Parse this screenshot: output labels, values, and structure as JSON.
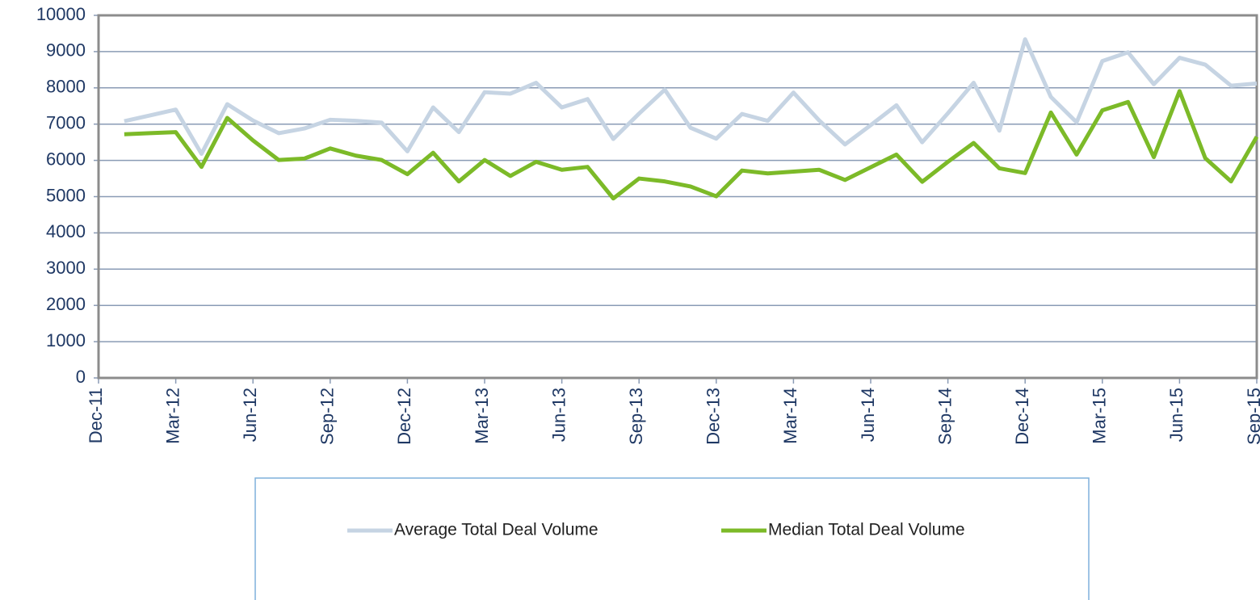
{
  "chart_data": {
    "type": "line",
    "x": [
      "2012-01",
      "2012-02",
      "2012-03",
      "2012-04",
      "2012-05",
      "2012-06",
      "2012-07",
      "2012-08",
      "2012-09",
      "2012-10",
      "2012-11",
      "2012-12",
      "2013-01",
      "2013-02",
      "2013-03",
      "2013-04",
      "2013-05",
      "2013-06",
      "2013-07",
      "2013-08",
      "2013-09",
      "2013-10",
      "2013-11",
      "2013-12",
      "2014-01",
      "2014-02",
      "2014-03",
      "2014-04",
      "2014-05",
      "2014-06",
      "2014-07",
      "2014-08",
      "2014-09",
      "2014-10",
      "2014-11",
      "2014-12",
      "2015-01",
      "2015-02",
      "2015-03",
      "2015-04",
      "2015-05",
      "2015-06",
      "2015-07",
      "2015-08",
      "2015-09"
    ],
    "series": [
      {
        "name": "Average Total Deal Volume",
        "color": "#c6d4e3",
        "values": [
          7080,
          7240,
          7400,
          6180,
          7550,
          7100,
          6750,
          6880,
          7120,
          7090,
          7040,
          6250,
          7460,
          6780,
          7880,
          7840,
          8140,
          7460,
          7690,
          6590,
          7290,
          7950,
          6900,
          6600,
          7280,
          7090,
          7870,
          7100,
          6440,
          6970,
          7520,
          6500,
          7300,
          8140,
          6820,
          9340,
          7750,
          7050,
          8740,
          8980,
          8100,
          8830,
          8640,
          8060,
          8120
        ]
      },
      {
        "name": "Median Total Deal Volume",
        "color": "#7cba28",
        "values": [
          6720,
          6750,
          6780,
          5820,
          7170,
          6550,
          6010,
          6050,
          6330,
          6130,
          6010,
          5620,
          6210,
          5420,
          6010,
          5570,
          5960,
          5740,
          5820,
          4950,
          5500,
          5420,
          5280,
          5010,
          5720,
          5640,
          5690,
          5740,
          5460,
          5810,
          6160,
          5410,
          5960,
          6480,
          5780,
          5650,
          7320,
          6160,
          7380,
          7610,
          6090,
          7910,
          6060,
          5420,
          6650
        ]
      }
    ],
    "xlim": [
      "2011-12",
      "2015-09"
    ],
    "xticks": [
      {
        "value": "2011-12",
        "label": "Dec-11"
      },
      {
        "value": "2012-03",
        "label": "Mar-12"
      },
      {
        "value": "2012-06",
        "label": "Jun-12"
      },
      {
        "value": "2012-09",
        "label": "Sep-12"
      },
      {
        "value": "2012-12",
        "label": "Dec-12"
      },
      {
        "value": "2013-03",
        "label": "Mar-13"
      },
      {
        "value": "2013-06",
        "label": "Jun-13"
      },
      {
        "value": "2013-09",
        "label": "Sep-13"
      },
      {
        "value": "2013-12",
        "label": "Dec-13"
      },
      {
        "value": "2014-03",
        "label": "Mar-14"
      },
      {
        "value": "2014-06",
        "label": "Jun-14"
      },
      {
        "value": "2014-09",
        "label": "Sep-14"
      },
      {
        "value": "2014-12",
        "label": "Dec-14"
      },
      {
        "value": "2015-03",
        "label": "Mar-15"
      },
      {
        "value": "2015-06",
        "label": "Jun-15"
      },
      {
        "value": "2015-09",
        "label": "Sep-15"
      }
    ],
    "ylim": [
      0,
      10000
    ],
    "yticks": [
      0,
      1000,
      2000,
      3000,
      4000,
      5000,
      6000,
      7000,
      8000,
      9000,
      10000
    ],
    "grid": true,
    "legend": "bottom"
  }
}
